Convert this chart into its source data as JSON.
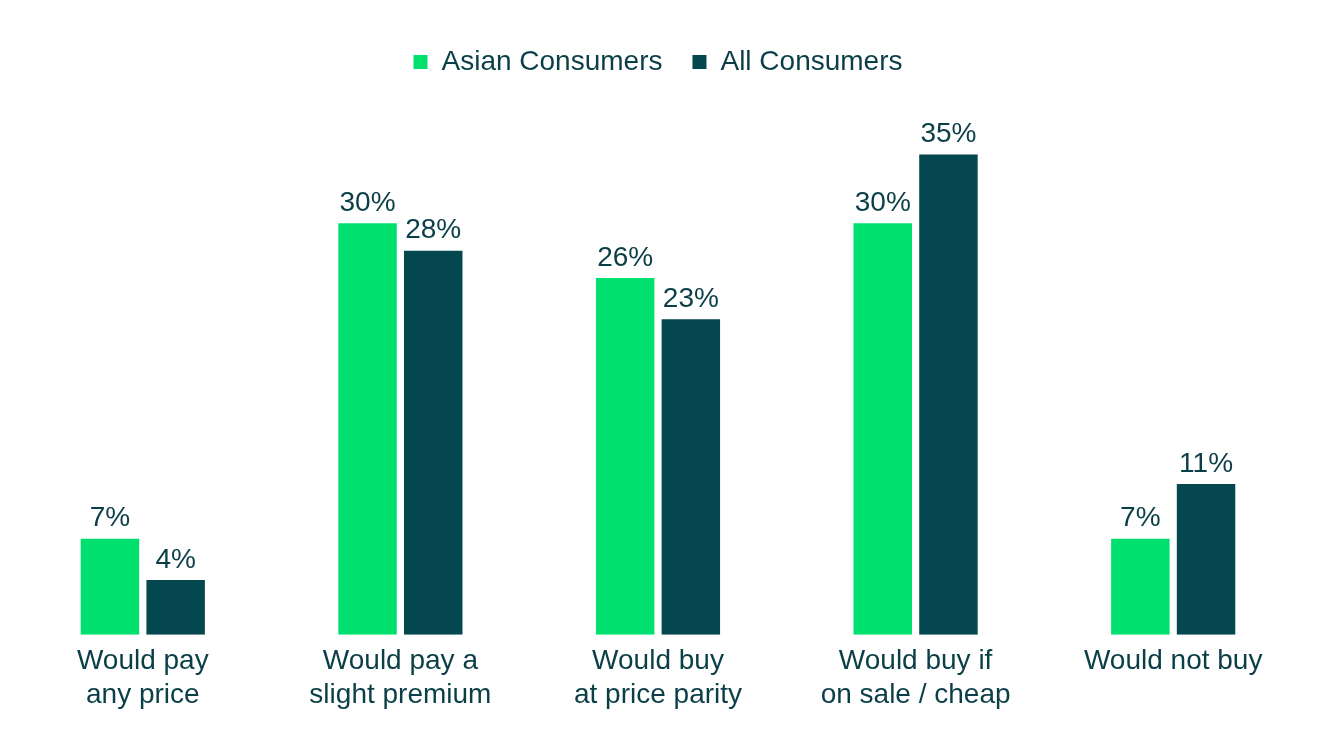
{
  "chart_data": {
    "type": "bar",
    "categories": [
      "Would pay\nany price",
      "Would pay a\nslight premium",
      "Would buy\nat price parity",
      "Would buy if\non sale / cheap",
      "Would not buy"
    ],
    "series": [
      {
        "name": "Asian Consumers",
        "color": "#00e06e",
        "values": [
          7,
          30,
          26,
          30,
          7
        ],
        "value_labels": [
          "7%",
          "30%",
          "26%",
          "30%",
          "7%"
        ]
      },
      {
        "name": "All Consumers",
        "color": "#05474f",
        "values": [
          4,
          28,
          23,
          35,
          11
        ],
        "value_labels": [
          "4%",
          "28%",
          "23%",
          "35%",
          "11%"
        ]
      }
    ],
    "legend": "top",
    "grid": false
  }
}
